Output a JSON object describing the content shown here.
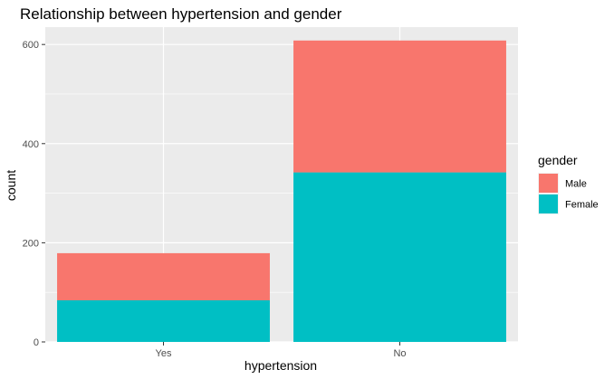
{
  "chart_data": {
    "type": "bar",
    "stacked": true,
    "title": "Relationship between hypertension and gender",
    "xlabel": "hypertension",
    "ylabel": "count",
    "categories": [
      "Yes",
      "No"
    ],
    "series": [
      {
        "name": "Male",
        "color": "#F8766D",
        "values": [
          95,
          266
        ]
      },
      {
        "name": "Female",
        "color": "#00BFC4",
        "values": [
          84,
          342
        ]
      }
    ],
    "ylim": [
      0,
      635
    ],
    "yticks": [
      0,
      200,
      400,
      600
    ],
    "grid": true,
    "legend": {
      "title": "gender",
      "position": "right",
      "entries": [
        "Male",
        "Female"
      ]
    },
    "colors": {
      "panel": "#EBEBEB",
      "grid": "#FFFFFF"
    }
  }
}
